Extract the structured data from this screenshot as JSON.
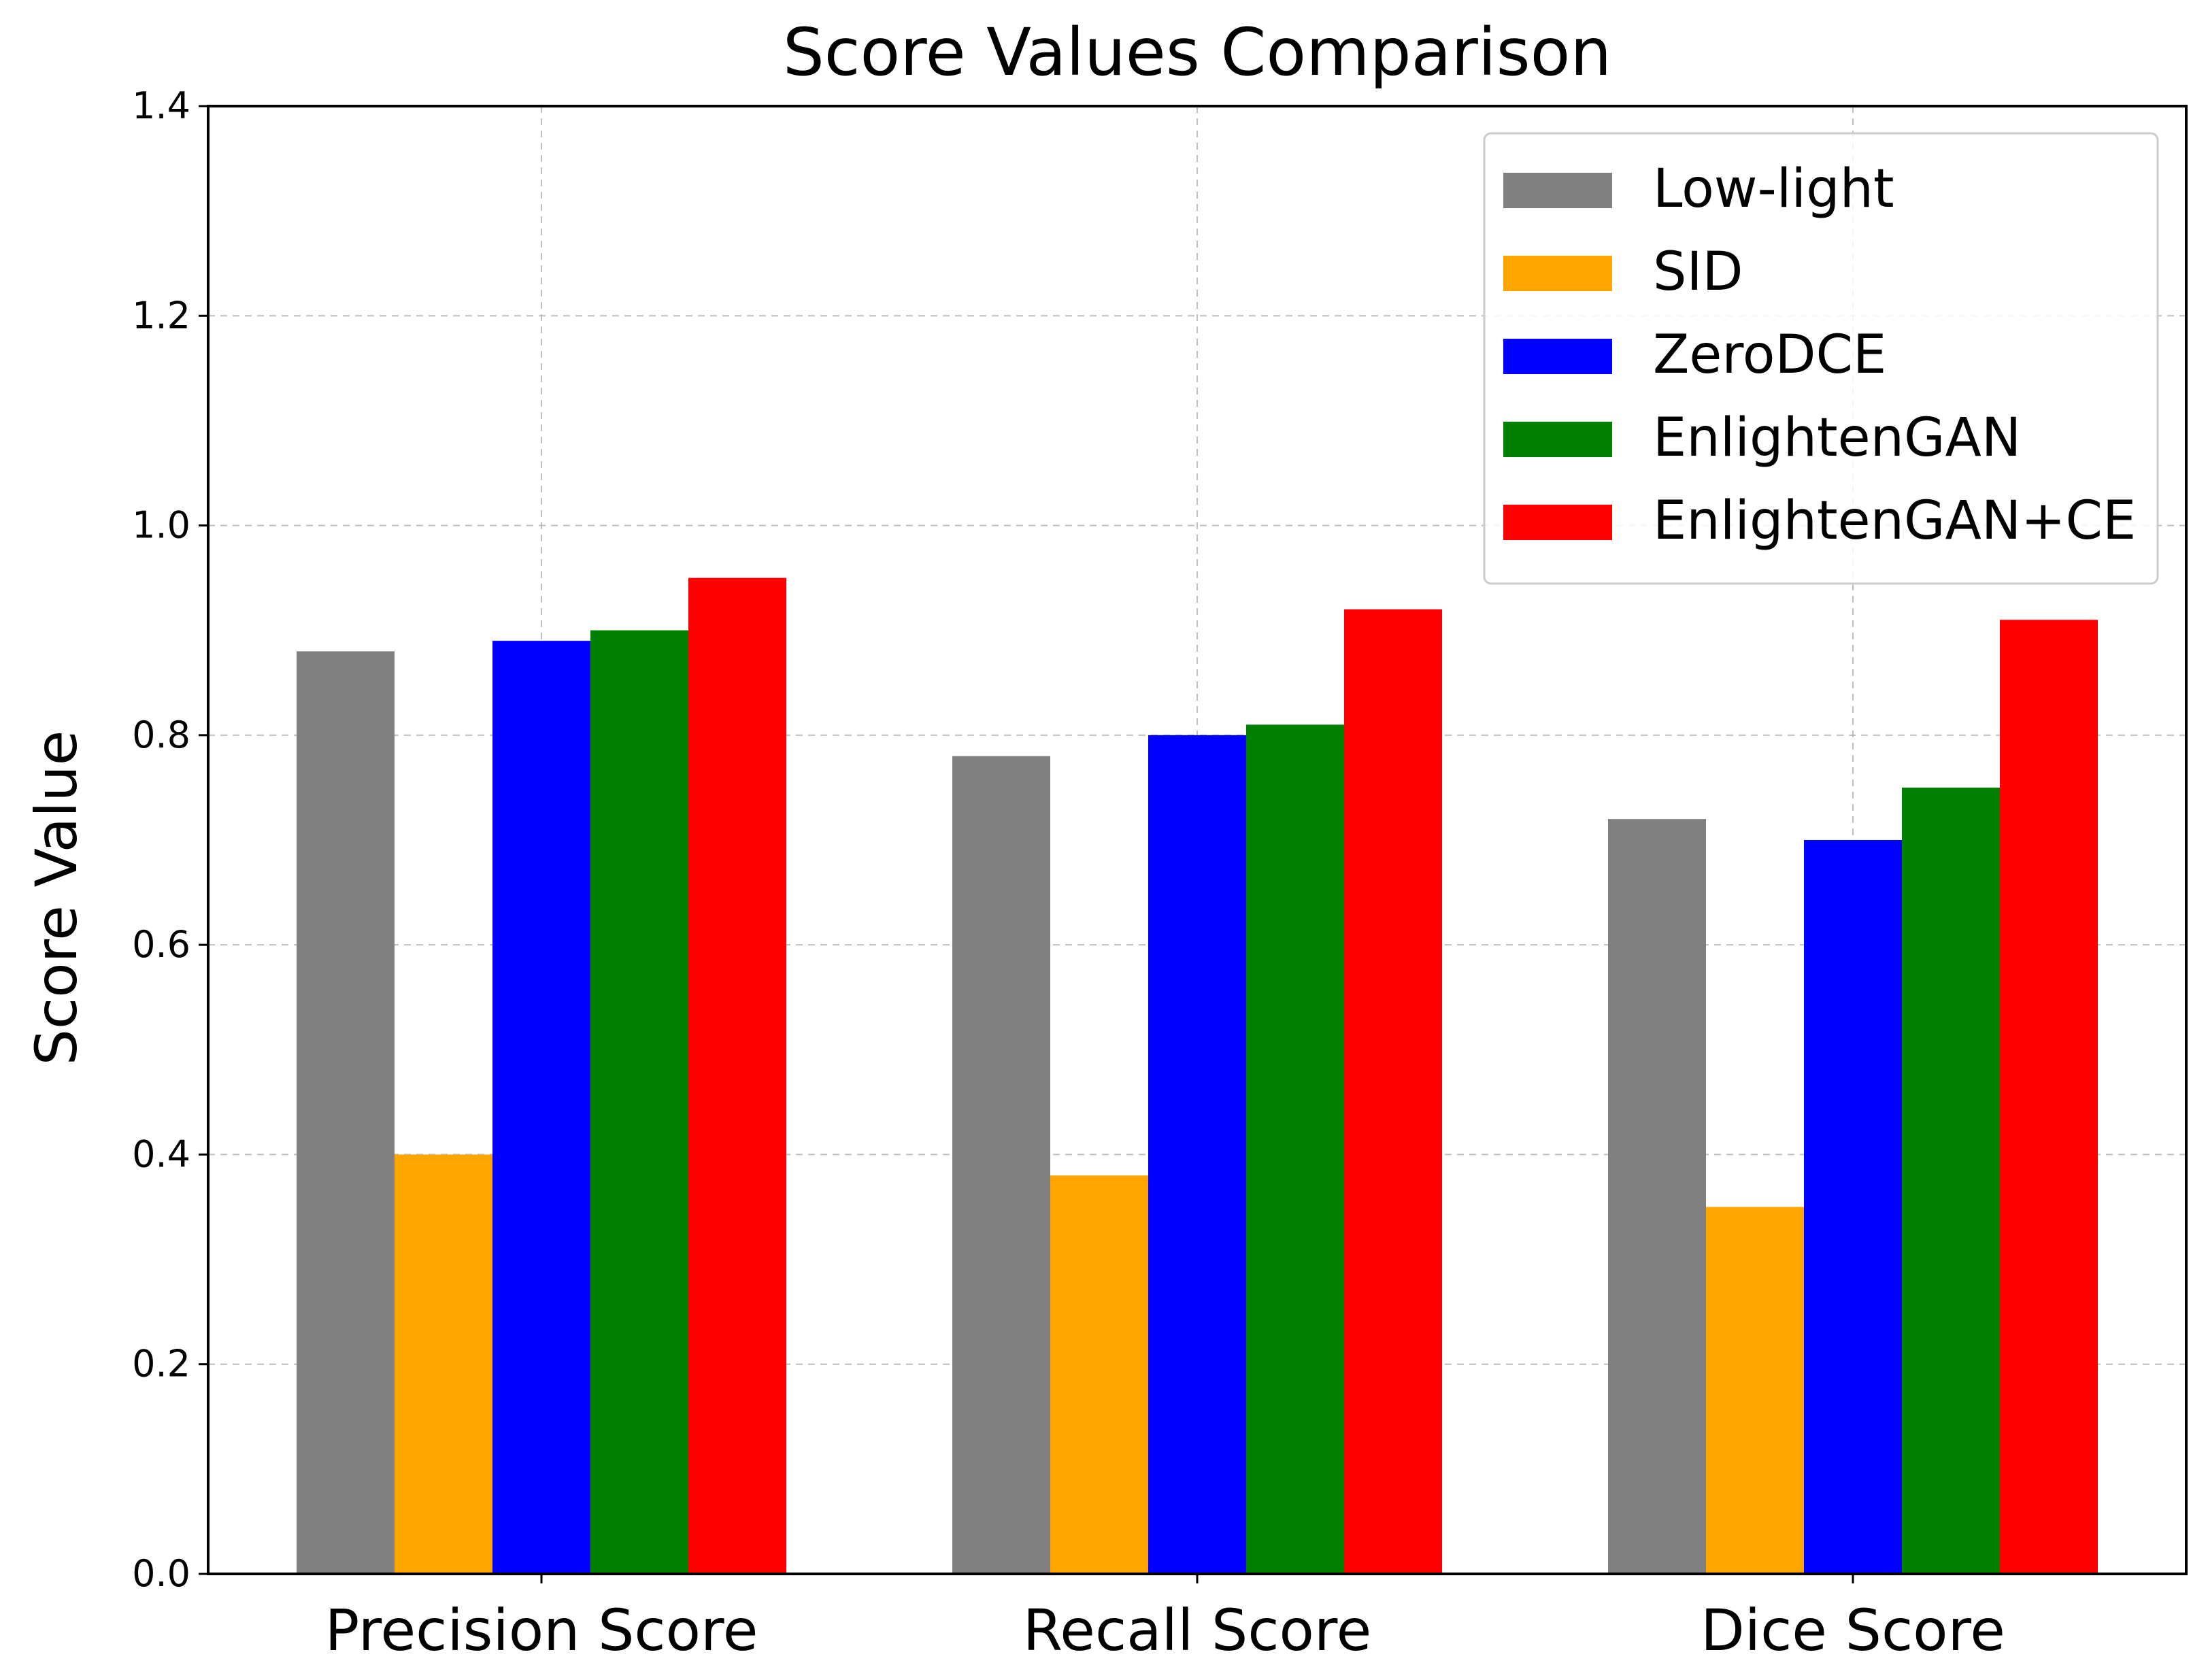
{
  "chart_data": {
    "type": "bar",
    "title": "Score Values Comparison",
    "xlabel": "",
    "ylabel": "Score Value",
    "ylim": [
      0,
      1.4
    ],
    "yticks": [
      "0.0",
      "0.2",
      "0.4",
      "0.6",
      "0.8",
      "1.0",
      "1.2",
      "1.4"
    ],
    "grid": true,
    "legend_position": "top-right",
    "categories": [
      "Precision Score",
      "Recall Score",
      "Dice Score"
    ],
    "series": [
      {
        "name": "Low-light",
        "color": "#808080",
        "values": [
          0.88,
          0.78,
          0.72
        ]
      },
      {
        "name": "SID",
        "color": "#ffa500",
        "values": [
          0.4,
          0.38,
          0.35
        ]
      },
      {
        "name": "ZeroDCE",
        "color": "#0000ff",
        "values": [
          0.89,
          0.8,
          0.7
        ]
      },
      {
        "name": "EnlightenGAN",
        "color": "#008000",
        "values": [
          0.9,
          0.81,
          0.75
        ]
      },
      {
        "name": "EnlightenGAN+CE",
        "color": "#ff0000",
        "values": [
          0.95,
          0.92,
          0.91
        ]
      }
    ]
  }
}
